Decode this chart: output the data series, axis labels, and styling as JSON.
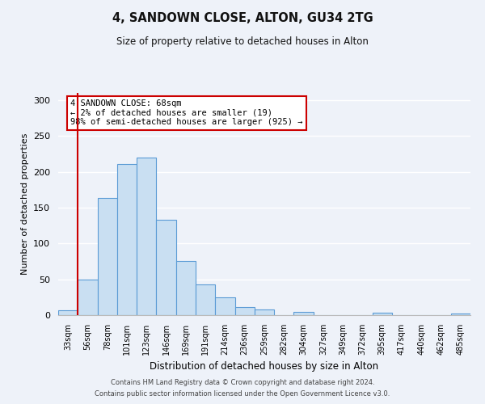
{
  "title": "4, SANDOWN CLOSE, ALTON, GU34 2TG",
  "subtitle": "Size of property relative to detached houses in Alton",
  "xlabel": "Distribution of detached houses by size in Alton",
  "ylabel": "Number of detached properties",
  "bar_labels": [
    "33sqm",
    "56sqm",
    "78sqm",
    "101sqm",
    "123sqm",
    "146sqm",
    "169sqm",
    "191sqm",
    "214sqm",
    "236sqm",
    "259sqm",
    "282sqm",
    "304sqm",
    "327sqm",
    "349sqm",
    "372sqm",
    "395sqm",
    "417sqm",
    "440sqm",
    "462sqm",
    "485sqm"
  ],
  "bar_heights": [
    7,
    50,
    163,
    211,
    220,
    133,
    75,
    43,
    25,
    11,
    8,
    0,
    4,
    0,
    0,
    0,
    3,
    0,
    0,
    0,
    2
  ],
  "bar_color": "#c9dff2",
  "bar_edge_color": "#5b9bd5",
  "vline_color": "#cc0000",
  "ylim": [
    0,
    310
  ],
  "yticks": [
    0,
    50,
    100,
    150,
    200,
    250,
    300
  ],
  "annotation_title": "4 SANDOWN CLOSE: 68sqm",
  "annotation_line1": "← 2% of detached houses are smaller (19)",
  "annotation_line2": "98% of semi-detached houses are larger (925) →",
  "annotation_box_color": "#ffffff",
  "annotation_box_edge": "#cc0000",
  "footer1": "Contains HM Land Registry data © Crown copyright and database right 2024.",
  "footer2": "Contains public sector information licensed under the Open Government Licence v3.0.",
  "background_color": "#eef2f9"
}
